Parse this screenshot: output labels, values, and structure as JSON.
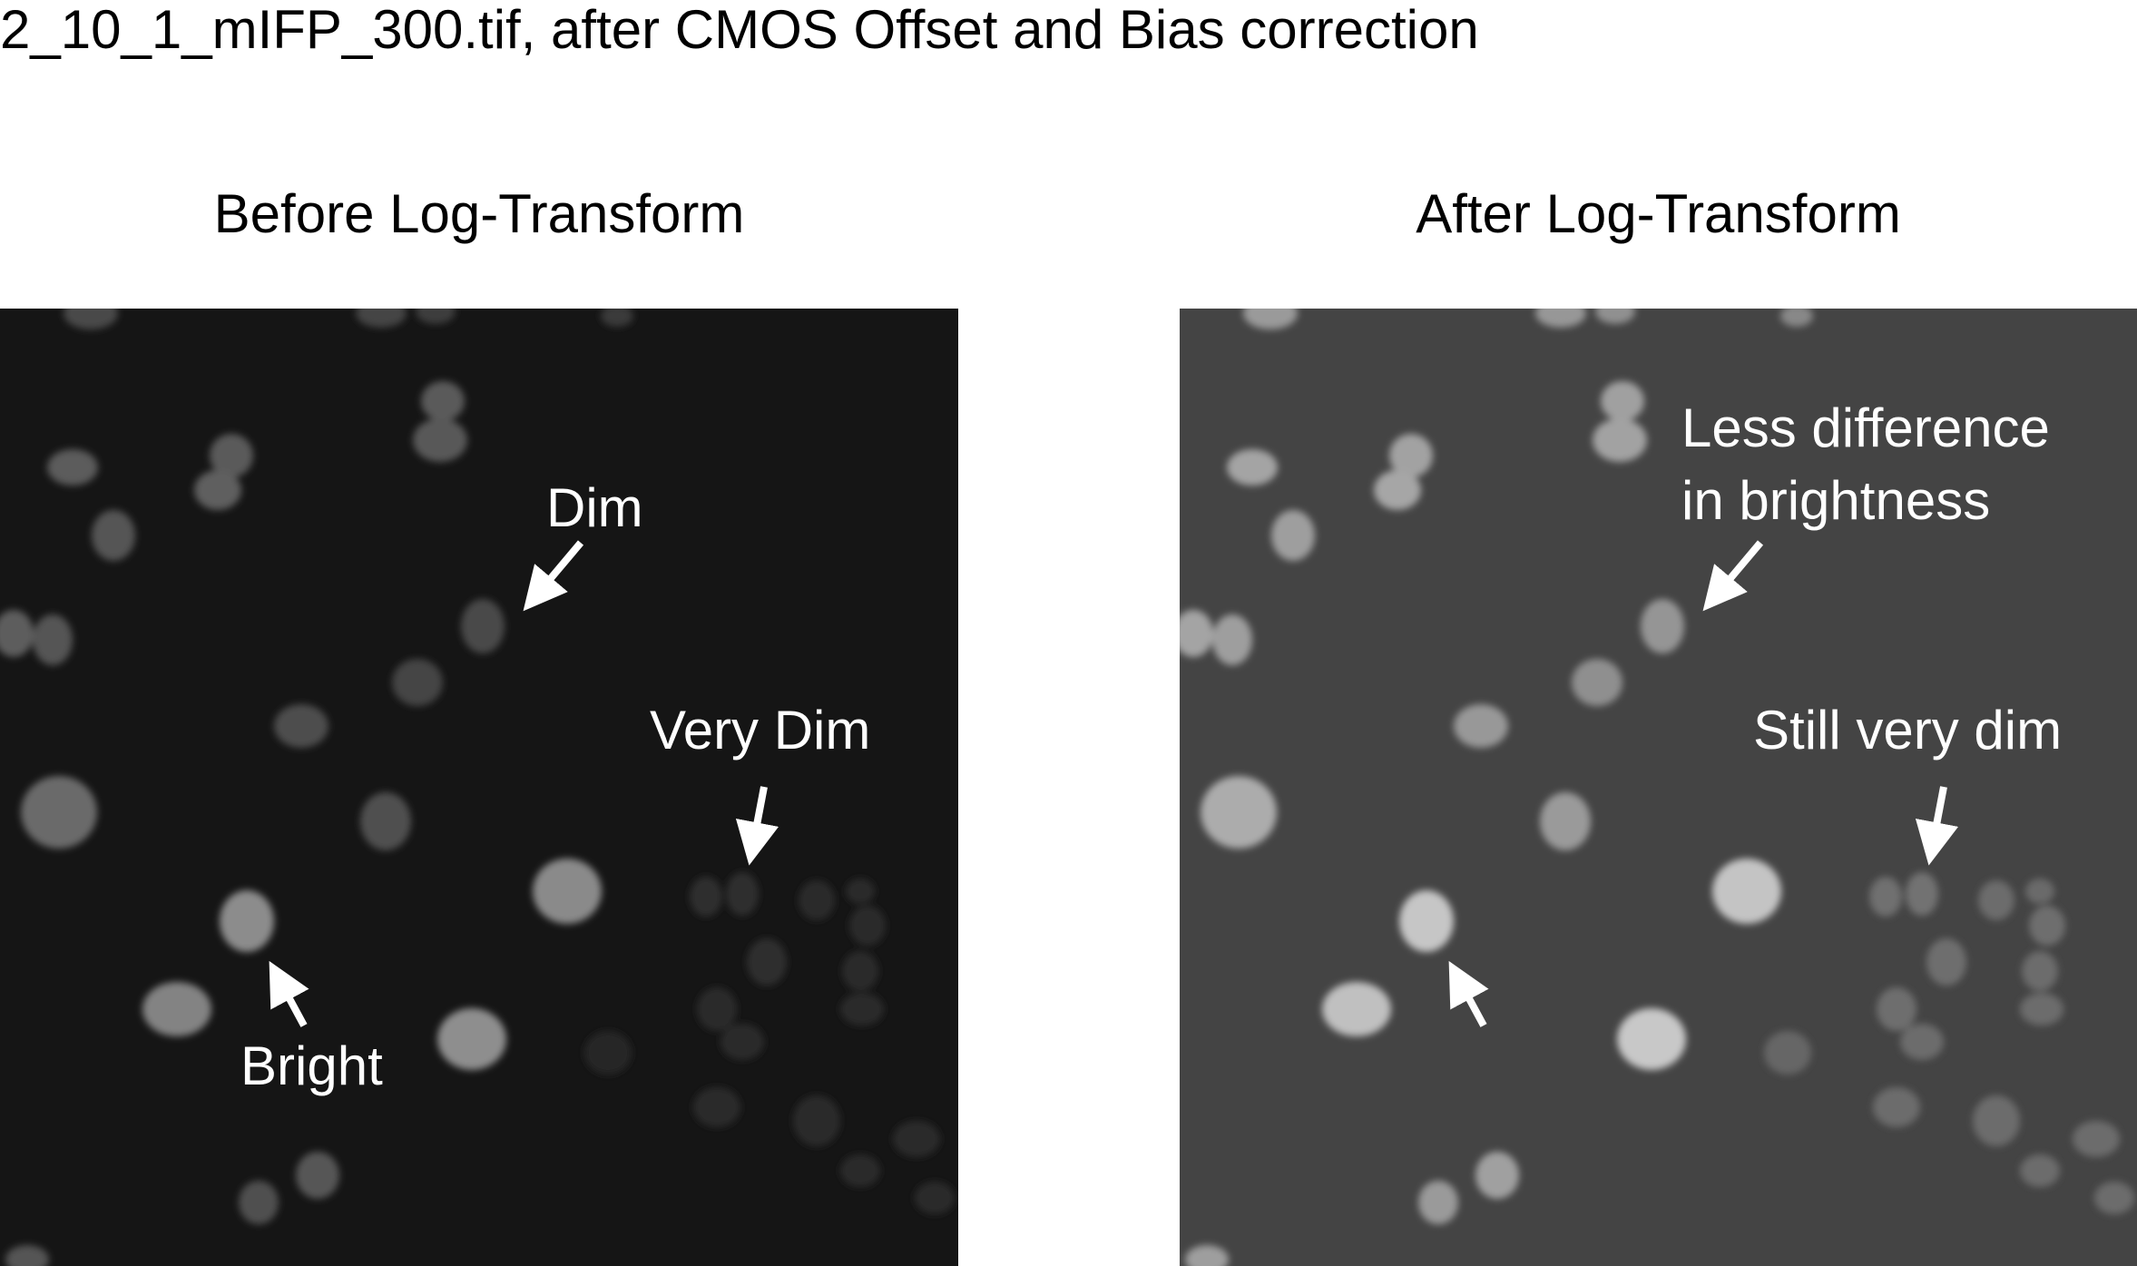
{
  "title": "2_10_1_mIFP_300.tif, after CMOS Offset and Bias correction",
  "panels": {
    "left": {
      "title": "Before Log-Transform",
      "background": "#151515",
      "annotations": {
        "dim": "Dim",
        "very_dim": "Very Dim",
        "bright": "Bright"
      }
    },
    "right": {
      "title": "After Log-Transform",
      "background": "#444444",
      "annotations": {
        "less_difference_line1": "Less difference",
        "less_difference_line2": "in brightness",
        "still_very_dim": "Still very dim"
      }
    }
  },
  "colors": {
    "annotation_text": "#ffffff",
    "arrow": "#ffffff"
  }
}
